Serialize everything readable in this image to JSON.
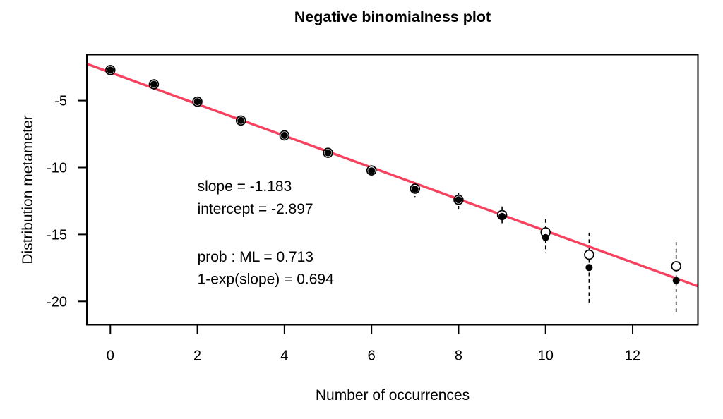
{
  "chart_data": {
    "type": "scatter",
    "title": "Negative binomialness plot",
    "xlabel": "Number of occurrences",
    "ylabel": "Distribution metameter",
    "xlim": [
      -0.54,
      13.5
    ],
    "ylim": [
      -21.75,
      -1.57
    ],
    "x_ticks": [
      0,
      2,
      4,
      6,
      8,
      10,
      12
    ],
    "y_ticks": [
      -5,
      -10,
      -15,
      -20
    ],
    "grid": false,
    "legend": null,
    "fit_line": {
      "slope": -1.183,
      "intercept": -2.897,
      "color": "#F6415F"
    },
    "stats": {
      "slope": -1.183,
      "intercept": -2.897,
      "prob_ML": 0.713,
      "one_minus_exp_slope": 0.694
    },
    "annotations": [
      {
        "text": "slope = -1.183",
        "x": 2.0,
        "y": -11.36
      },
      {
        "text": "intercept = -2.897",
        "x": 2.0,
        "y": -13.05
      },
      {
        "text": "prob : ML = 0.713",
        "x": 2.0,
        "y": -16.63
      },
      {
        "text": "1-exp(slope) = 0.694",
        "x": 2.0,
        "y": -18.3
      }
    ],
    "points": [
      {
        "x": 0,
        "observed": -2.72,
        "ci_center": -2.72,
        "ci_low": null,
        "ci_high": null
      },
      {
        "x": 1,
        "observed": -3.78,
        "ci_center": -3.78,
        "ci_low": null,
        "ci_high": null
      },
      {
        "x": 2,
        "observed": -5.08,
        "ci_center": -5.08,
        "ci_low": null,
        "ci_high": null
      },
      {
        "x": 3,
        "observed": -6.49,
        "ci_center": -6.49,
        "ci_low": null,
        "ci_high": null
      },
      {
        "x": 4,
        "observed": -7.6,
        "ci_center": -7.6,
        "ci_low": null,
        "ci_high": null
      },
      {
        "x": 5,
        "observed": -8.9,
        "ci_center": -8.9,
        "ci_low": null,
        "ci_high": null
      },
      {
        "x": 6,
        "observed": -10.25,
        "ci_center": -10.22,
        "ci_low": -10.75,
        "ci_high": -9.85
      },
      {
        "x": 7,
        "observed": -11.61,
        "ci_center": -11.58,
        "ci_low": -12.2,
        "ci_high": -11.15
      },
      {
        "x": 8,
        "observed": -12.41,
        "ci_center": -12.41,
        "ci_low": -13.12,
        "ci_high": -11.88
      },
      {
        "x": 9,
        "observed": -13.65,
        "ci_center": -13.55,
        "ci_low": -14.38,
        "ci_high": -12.91
      },
      {
        "x": 10,
        "observed": -15.23,
        "ci_center": -14.84,
        "ci_low": -16.4,
        "ci_high": -13.86
      },
      {
        "x": 11,
        "observed": -17.47,
        "ci_center": -16.51,
        "ci_low": -20.23,
        "ci_high": -14.87
      },
      {
        "x": 13,
        "observed": -18.44,
        "ci_center": -17.37,
        "ci_low": -21.02,
        "ci_high": -15.57
      }
    ]
  }
}
